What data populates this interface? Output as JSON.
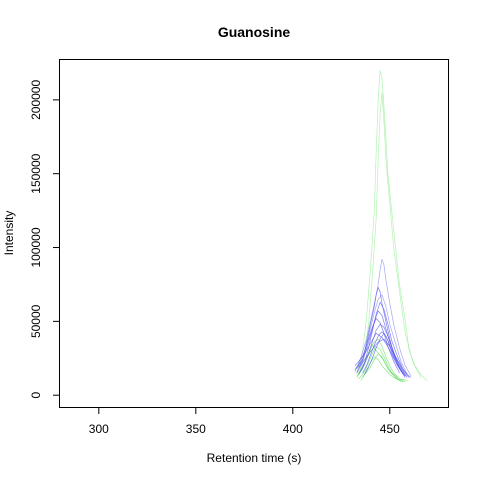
{
  "chart_data": {
    "type": "line",
    "title": "Guanosine",
    "xlabel": "Retention time (s)",
    "ylabel": "Intensity",
    "xlim": [
      280,
      480
    ],
    "ylim": [
      -8000,
      227000
    ],
    "x_ticks": [
      300,
      350,
      400,
      450
    ],
    "y_ticks": [
      0,
      50000,
      100000,
      150000,
      200000
    ],
    "grid": false,
    "legend": "none",
    "colors": {
      "green": "#66dd66",
      "blue": "#5555ee",
      "green_light": "#99ee99",
      "blue_light": "#8888ee"
    },
    "series": [
      {
        "color": "green_light",
        "x": [
          433,
          436,
          438,
          440,
          442,
          443,
          444,
          445,
          446,
          447,
          448,
          449,
          451,
          453,
          455,
          458,
          460,
          463,
          466,
          469
        ],
        "y": [
          15000,
          30000,
          52000,
          85000,
          125000,
          165000,
          200000,
          220000,
          215000,
          195000,
          175000,
          150000,
          125000,
          100000,
          75000,
          50000,
          30000,
          20000,
          14000,
          10000
        ]
      },
      {
        "color": "green_light",
        "x": [
          434,
          437,
          439,
          441,
          443,
          444,
          445,
          446,
          447,
          448,
          450,
          452,
          455,
          458,
          462,
          466
        ],
        "y": [
          14000,
          28000,
          48000,
          80000,
          120000,
          160000,
          190000,
          205000,
          185000,
          160000,
          130000,
          100000,
          70000,
          42000,
          22000,
          12000
        ]
      },
      {
        "color": "green",
        "x": [
          433,
          436,
          438,
          440,
          442,
          444,
          446,
          448,
          450,
          452,
          455,
          458
        ],
        "y": [
          12000,
          18000,
          25000,
          32000,
          36000,
          38000,
          33000,
          26000,
          20000,
          15000,
          11000,
          9000
        ]
      },
      {
        "color": "green",
        "x": [
          434,
          437,
          439,
          441,
          443,
          445,
          447,
          449,
          451,
          454,
          457
        ],
        "y": [
          11000,
          16000,
          22000,
          28000,
          33000,
          31000,
          26000,
          20000,
          15000,
          11000,
          9000
        ]
      },
      {
        "color": "green",
        "x": [
          435,
          437,
          440,
          442,
          444,
          446,
          448,
          450,
          453,
          456
        ],
        "y": [
          10000,
          14000,
          19000,
          24000,
          28000,
          26000,
          21000,
          16000,
          12000,
          9000
        ]
      },
      {
        "color": "green",
        "x": [
          433,
          436,
          439,
          441,
          443,
          445,
          447,
          449,
          452,
          455,
          459
        ],
        "y": [
          13000,
          20000,
          27000,
          34000,
          30000,
          27000,
          23000,
          18000,
          14000,
          11000,
          10000
        ]
      },
      {
        "color": "green",
        "x": [
          436,
          438,
          440,
          442,
          444,
          446,
          448,
          450,
          452,
          455
        ],
        "y": [
          12000,
          17000,
          22000,
          26000,
          24000,
          20000,
          17000,
          14000,
          12000,
          10000
        ]
      },
      {
        "color": "blue_light",
        "x": [
          432,
          435,
          438,
          440,
          442,
          444,
          445,
          446,
          447,
          448,
          450,
          452,
          455,
          458,
          461
        ],
        "y": [
          16000,
          25000,
          38000,
          50000,
          62000,
          75000,
          85000,
          92000,
          88000,
          78000,
          62000,
          48000,
          32000,
          20000,
          13000
        ]
      },
      {
        "color": "blue_light",
        "x": [
          433,
          436,
          438,
          440,
          442,
          444,
          446,
          448,
          450,
          453,
          456,
          459
        ],
        "y": [
          15000,
          22000,
          33000,
          45000,
          56000,
          65000,
          68000,
          60000,
          48000,
          35000,
          22000,
          14000
        ]
      },
      {
        "color": "blue",
        "x": [
          433,
          436,
          438,
          440,
          442,
          443,
          444,
          445,
          446,
          448,
          450,
          452,
          455,
          458
        ],
        "y": [
          15000,
          24000,
          35000,
          48000,
          60000,
          68000,
          73000,
          70000,
          62000,
          50000,
          38000,
          28000,
          18000,
          12000
        ]
      },
      {
        "color": "blue",
        "x": [
          434,
          437,
          439,
          441,
          443,
          445,
          447,
          449,
          451,
          454,
          457,
          460
        ],
        "y": [
          14000,
          22000,
          32000,
          43000,
          55000,
          63000,
          58000,
          48000,
          37000,
          26000,
          17000,
          12000
        ]
      },
      {
        "color": "blue",
        "x": [
          432,
          435,
          437,
          439,
          441,
          443,
          445,
          447,
          449,
          452,
          455
        ],
        "y": [
          17000,
          23000,
          30000,
          38000,
          46000,
          52000,
          49000,
          42000,
          33000,
          23000,
          15000
        ]
      },
      {
        "color": "blue",
        "x": [
          435,
          437,
          439,
          441,
          443,
          445,
          447,
          449,
          451,
          453,
          456,
          459
        ],
        "y": [
          16000,
          21000,
          28000,
          36000,
          44000,
          48000,
          46000,
          40000,
          33000,
          26000,
          18000,
          12000
        ]
      },
      {
        "color": "blue",
        "x": [
          433,
          436,
          438,
          440,
          442,
          444,
          446,
          448,
          450,
          453,
          456
        ],
        "y": [
          18000,
          24000,
          31000,
          40000,
          50000,
          57000,
          54000,
          45000,
          36000,
          25000,
          16000
        ]
      },
      {
        "color": "blue",
        "x": [
          436,
          438,
          440,
          442,
          444,
          446,
          448,
          450,
          452,
          455,
          458
        ],
        "y": [
          15000,
          20000,
          27000,
          34000,
          40000,
          43000,
          40000,
          34000,
          27000,
          19000,
          13000
        ]
      },
      {
        "color": "blue",
        "x": [
          432,
          434,
          437,
          440,
          443,
          446,
          449,
          452,
          455,
          458
        ],
        "y": [
          20000,
          23000,
          28000,
          35000,
          42000,
          39000,
          33000,
          25000,
          18000,
          13000
        ]
      },
      {
        "color": "blue",
        "x": [
          434,
          436,
          438,
          441,
          444,
          447,
          450,
          453,
          456,
          459,
          461
        ],
        "y": [
          19000,
          22000,
          26000,
          31000,
          36000,
          38000,
          33000,
          26000,
          19000,
          14000,
          12000
        ]
      },
      {
        "color": "blue",
        "x": [
          437,
          439,
          441,
          443,
          445,
          447,
          449,
          451,
          454,
          457
        ],
        "y": [
          14000,
          19000,
          25000,
          32000,
          38000,
          42000,
          37000,
          29000,
          20000,
          14000
        ]
      }
    ]
  }
}
